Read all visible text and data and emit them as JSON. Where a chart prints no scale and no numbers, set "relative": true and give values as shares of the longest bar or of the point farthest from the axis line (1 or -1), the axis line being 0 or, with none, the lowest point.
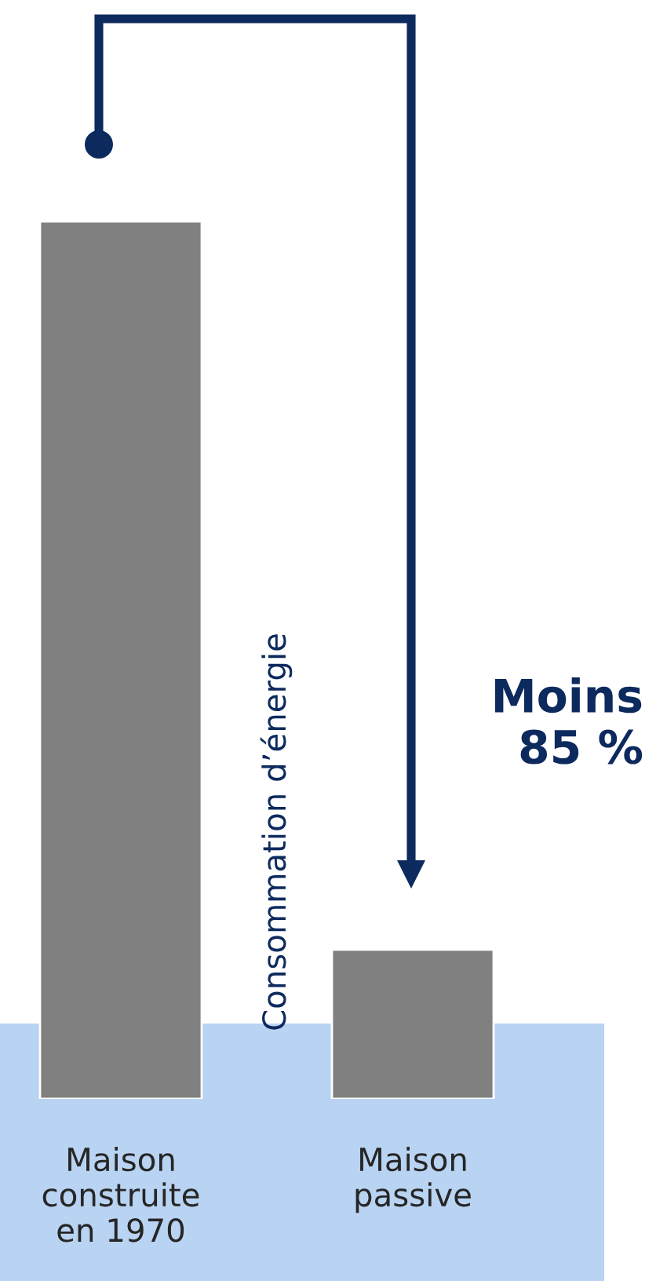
{
  "chart_data": {
    "type": "bar",
    "relative": true,
    "categories": [
      "Maison\nconstruite\nen 1970",
      "Maison\npassive"
    ],
    "values": [
      1,
      0.17
    ],
    "color": "#808080",
    "ylabel": "Consommation d’énergie",
    "annotations": [
      "Moins\n85 %"
    ],
    "grid": false,
    "legend": false
  }
}
